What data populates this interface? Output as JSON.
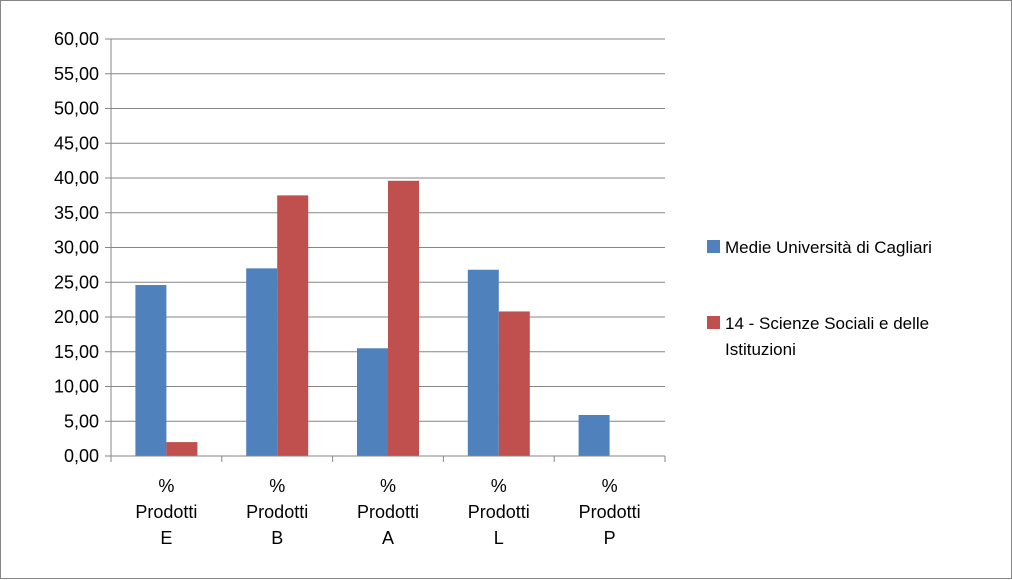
{
  "chart_data": {
    "type": "bar",
    "categories": [
      [
        "%",
        "Prodotti",
        "E"
      ],
      [
        "%",
        "Prodotti",
        "B"
      ],
      [
        "%",
        "Prodotti",
        "A"
      ],
      [
        "%",
        "Prodotti",
        "L"
      ],
      [
        "%",
        "Prodotti",
        "P"
      ]
    ],
    "series": [
      {
        "name": "Medie Università di Cagliari",
        "color": "#4F81BD",
        "values": [
          24.6,
          27.0,
          15.5,
          26.8,
          5.9
        ]
      },
      {
        "name": "14 - Scienze Sociali e delle Istituzioni",
        "color": "#C0504D",
        "values": [
          2.0,
          37.5,
          39.6,
          20.8,
          0
        ]
      }
    ],
    "legend_lines": [
      [
        "Medie Università di Cagliari"
      ],
      [
        "14 - Scienze Sociali e delle",
        "Istituzioni"
      ]
    ],
    "ylim": [
      0,
      60
    ],
    "yticks": [
      "0,00",
      "5,00",
      "10,00",
      "15,00",
      "20,00",
      "25,00",
      "30,00",
      "35,00",
      "40,00",
      "45,00",
      "50,00",
      "55,00",
      "60,00"
    ],
    "ytick_step": 5,
    "grid": true,
    "legend_position": "right"
  }
}
